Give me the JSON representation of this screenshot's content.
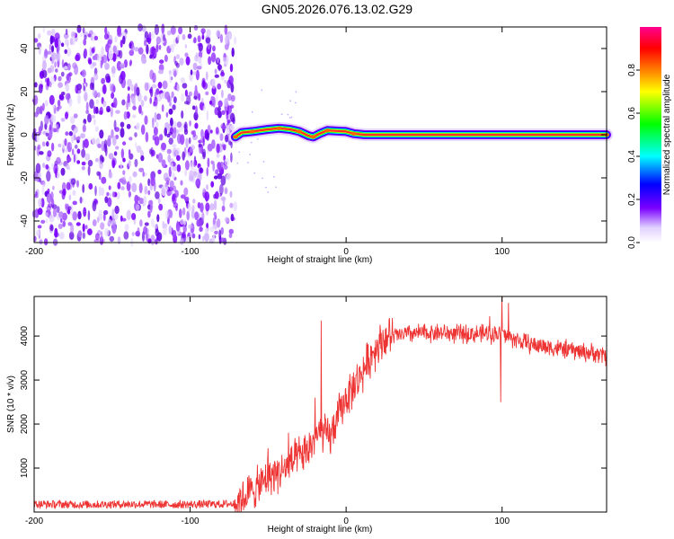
{
  "figure_title": "GN05.2026.076.13.02.G29",
  "chart_data": [
    {
      "type": "heatmap",
      "xlabel": "Height of straight line (km)",
      "ylabel": "Frequency (Hz)",
      "xlim": [
        -200,
        167
      ],
      "ylim": [
        -50,
        50
      ],
      "x_ticks": [
        -200,
        -100,
        0,
        100
      ],
      "x_tick_labels": [
        "-200",
        "-100",
        "0",
        "100"
      ],
      "y_ticks": [
        -40,
        -20,
        0,
        20,
        40
      ],
      "y_tick_labels": [
        "-40",
        "-20",
        "0",
        "20",
        "40"
      ],
      "colorbar": {
        "label": "Normalized spectral amplitude",
        "range": [
          0,
          1
        ],
        "ticks": [
          0.0,
          0.2,
          0.4,
          0.6,
          0.8
        ],
        "tick_labels": [
          "0.0",
          "0.2",
          "0.4",
          "0.6",
          "0.8"
        ],
        "colormap": [
          "#ffffff",
          "#e8d8ff",
          "#7a00ff",
          "#0000ff",
          "#00ffff",
          "#00ff00",
          "#ffff00",
          "#ff7f00",
          "#ff0000",
          "#ff00a0"
        ]
      },
      "noise_region": {
        "x_range": [
          -200,
          -71
        ],
        "f_range": [
          -50,
          50
        ],
        "amplitude": 0.1
      },
      "signal_track": [
        {
          "x": -71,
          "f": -1.0
        },
        {
          "x": -67,
          "f": 1.0
        },
        {
          "x": -60,
          "f": 1.5
        },
        {
          "x": -50,
          "f": 2.5
        },
        {
          "x": -43,
          "f": 3.0
        },
        {
          "x": -36,
          "f": 2.5
        },
        {
          "x": -30,
          "f": 1.5
        },
        {
          "x": -24,
          "f": -0.5
        },
        {
          "x": -21,
          "f": -1.0
        },
        {
          "x": -17,
          "f": 0.5
        },
        {
          "x": -12,
          "f": 2.0
        },
        {
          "x": 0,
          "f": 1.5
        },
        {
          "x": 5,
          "f": 0.5
        },
        {
          "x": 12,
          "f": 0.0
        },
        {
          "x": 167,
          "f": 0.0
        }
      ]
    },
    {
      "type": "line",
      "xlabel": "Height of straight line (km)",
      "ylabel": "SNR (10 * v/v)",
      "xlim": [
        -200,
        167
      ],
      "ylim": [
        0,
        4900
      ],
      "x_ticks": [
        -200,
        -100,
        0,
        100
      ],
      "x_tick_labels": [
        "-200",
        "-100",
        "0",
        "100"
      ],
      "y_ticks": [
        1000,
        2000,
        3000,
        4000
      ],
      "y_tick_labels": [
        "1000",
        "2000",
        "3000",
        "4000"
      ],
      "series": [
        {
          "name": "SNR",
          "color": "#ee3333",
          "x": [
            -200,
            -170,
            -140,
            -110,
            -80,
            -72,
            -65,
            -60,
            -55,
            -50,
            -45,
            -40,
            -35,
            -30,
            -25,
            -20,
            -15,
            -10,
            -5,
            0,
            5,
            10,
            15,
            20,
            25,
            30,
            35,
            40,
            50,
            60,
            70,
            80,
            90,
            100,
            110,
            120,
            130,
            140,
            150,
            160,
            167
          ],
          "values": [
            180,
            170,
            180,
            170,
            180,
            190,
            350,
            500,
            600,
            800,
            900,
            950,
            1100,
            1250,
            1350,
            1700,
            1800,
            1700,
            2200,
            2600,
            2850,
            3150,
            3500,
            3800,
            3950,
            4000,
            4020,
            4050,
            4070,
            4080,
            4050,
            4050,
            4050,
            4050,
            3900,
            3800,
            3750,
            3700,
            3650,
            3600,
            3550
          ],
          "spikes": [
            {
              "x": -50,
              "value": 1450
            },
            {
              "x": -37,
              "value": 1800
            },
            {
              "x": -20,
              "value": 2600
            },
            {
              "x": -16,
              "value": 4350
            },
            {
              "x": 92,
              "value": 4450
            },
            {
              "x": 100,
              "value": 4900
            },
            {
              "x": 99,
              "value": 2500
            },
            {
              "x": 104,
              "value": 4750
            }
          ]
        }
      ]
    }
  ]
}
